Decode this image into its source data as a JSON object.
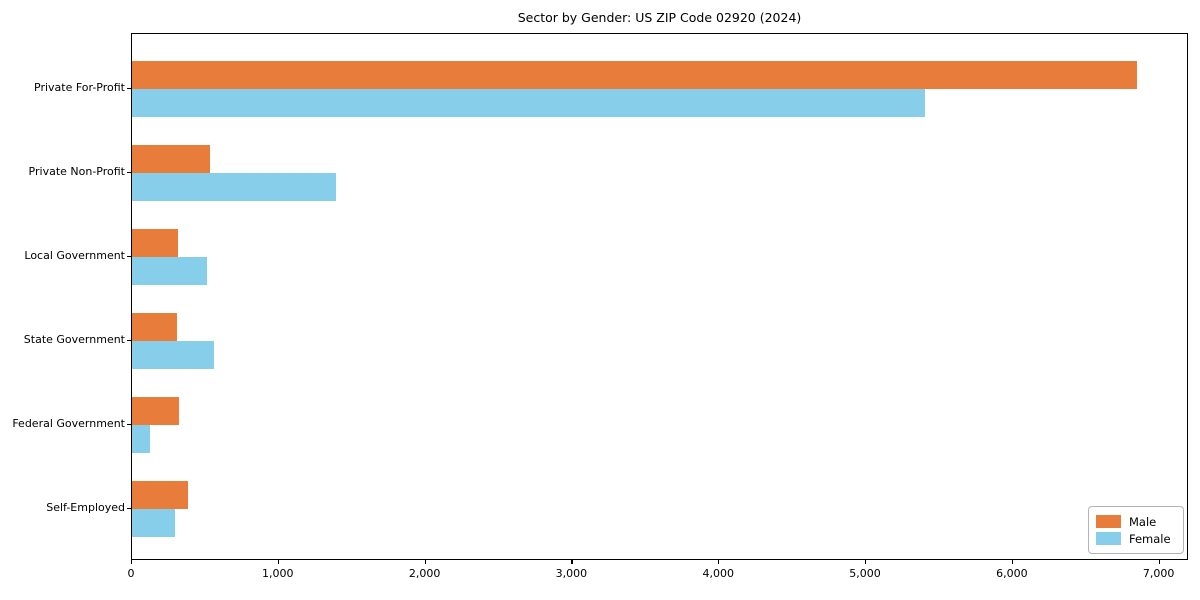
{
  "chart_data": {
    "type": "bar",
    "orientation": "horizontal",
    "title": "Sector by Gender: US ZIP Code 02920 (2024)",
    "categories": [
      "Private For-Profit",
      "Private Non-Profit",
      "Local Government",
      "State Government",
      "Federal Government",
      "Self-Employed"
    ],
    "series": [
      {
        "name": "Male",
        "color": "#e87d3b",
        "values": [
          6845,
          530,
          310,
          305,
          320,
          380
        ]
      },
      {
        "name": "Female",
        "color": "#87ceeb",
        "values": [
          5400,
          1390,
          510,
          560,
          125,
          295
        ]
      }
    ],
    "xlabel": "",
    "ylabel": "",
    "xlim": [
      0,
      7200
    ],
    "x_tick_values": [
      0,
      1000,
      2000,
      3000,
      4000,
      5000,
      6000,
      7000
    ],
    "x_tick_labels": [
      "0",
      "1,000",
      "2,000",
      "3,000",
      "4,000",
      "5,000",
      "6,000",
      "7,000"
    ],
    "grid": false,
    "legend_position": "lower right",
    "colors": {
      "male": "#e87d3b",
      "female": "#87ceeb",
      "spine": "#000000",
      "background": "#ffffff"
    }
  }
}
